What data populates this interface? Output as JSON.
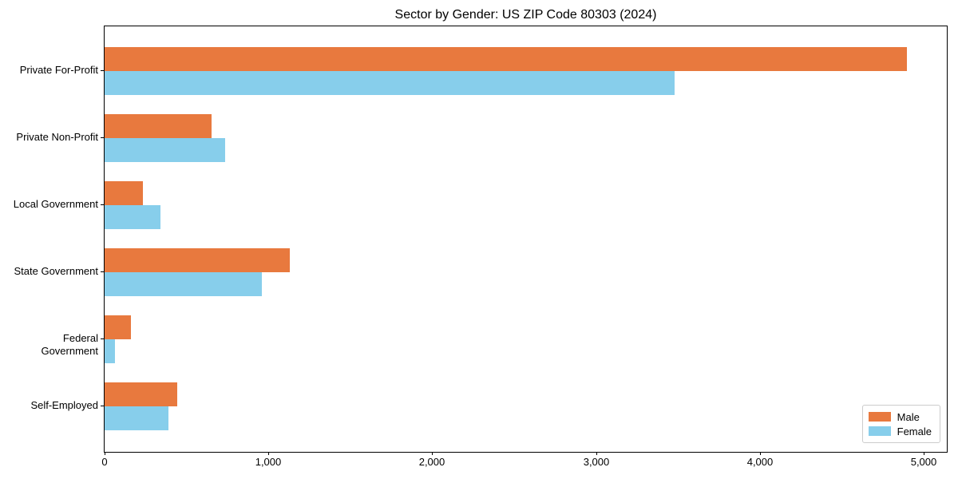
{
  "title": "Sector by Gender: US ZIP Code 80303 (2024)",
  "chart_data": {
    "type": "bar",
    "orientation": "horizontal",
    "title": "Sector by Gender: US ZIP Code 80303 (2024)",
    "categories": [
      "Private For-Profit",
      "Private Non-Profit",
      "Local Government",
      "State Government",
      "Federal Government",
      "Self-Employed"
    ],
    "series": [
      {
        "name": "Male",
        "color": "#e8793e",
        "values": [
          4900,
          655,
          235,
          1130,
          160,
          445
        ]
      },
      {
        "name": "Female",
        "color": "#87ceeb",
        "values": [
          3480,
          735,
          340,
          960,
          65,
          390
        ]
      }
    ],
    "xlabel": "",
    "ylabel": "",
    "xlim": [
      0,
      5000
    ],
    "xticks": [
      0,
      1000,
      2000,
      3000,
      4000,
      5000
    ],
    "xtick_labels": [
      "0",
      "1,000",
      "2,000",
      "3,000",
      "4,000",
      "5,000"
    ],
    "grid": false,
    "legend_position": "lower right"
  },
  "legend": {
    "items": [
      {
        "label": "Male",
        "color": "#e8793e"
      },
      {
        "label": "Female",
        "color": "#87ceeb"
      }
    ]
  }
}
